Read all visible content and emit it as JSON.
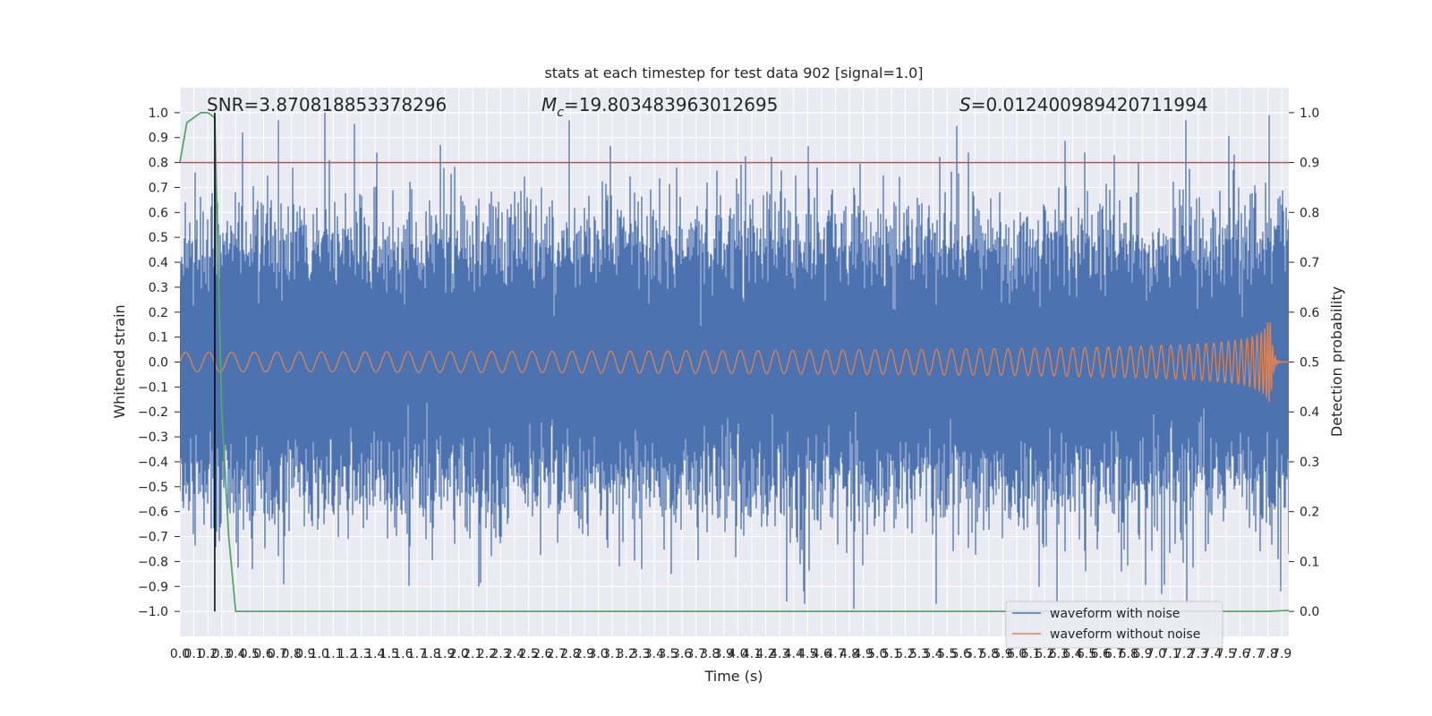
{
  "chart_data": {
    "type": "line",
    "title": "stats at each timestep for test data 902 [signal=1.0]",
    "xlabel": "Time (s)",
    "ylabel": "Whitened strain",
    "ylabel_right": "Detection probability",
    "xlim": [
      0.0,
      7.95
    ],
    "ylim": [
      -1.1,
      1.1
    ],
    "ylim_right": [
      -0.05,
      1.05
    ],
    "x_ticks": [
      0.0,
      0.1,
      0.2,
      0.3,
      0.4,
      0.5,
      0.6,
      0.7,
      0.8,
      0.9,
      1.0,
      1.1,
      1.2,
      1.3,
      1.4,
      1.5,
      1.6,
      1.7,
      1.8,
      1.9,
      2.0,
      2.1,
      2.2,
      2.3,
      2.4,
      2.5,
      2.6,
      2.7,
      2.8,
      2.9,
      3.0,
      3.1,
      3.2,
      3.3,
      3.4,
      3.5,
      3.6,
      3.7,
      3.8,
      3.9,
      4.0,
      4.1,
      4.2,
      4.3,
      4.4,
      4.5,
      4.6,
      4.7,
      4.8,
      4.9,
      5.0,
      5.1,
      5.2,
      5.3,
      5.4,
      5.5,
      5.6,
      5.7,
      5.8,
      5.9,
      6.0,
      6.1,
      6.2,
      6.3,
      6.4,
      6.5,
      6.6,
      6.7,
      6.8,
      6.9,
      7.0,
      7.1,
      7.2,
      7.3,
      7.4,
      7.5,
      7.6,
      7.7,
      7.8,
      7.9
    ],
    "y_ticks": [
      -1.0,
      -0.9,
      -0.8,
      -0.7,
      -0.6,
      -0.5,
      -0.4,
      -0.3,
      -0.2,
      -0.1,
      0.0,
      0.1,
      0.2,
      0.3,
      0.4,
      0.5,
      0.6,
      0.7,
      0.8,
      0.9,
      1.0
    ],
    "y_ticks_right": [
      0.0,
      0.1,
      0.2,
      0.3,
      0.4,
      0.5,
      0.6,
      0.7,
      0.8,
      0.9,
      1.0
    ],
    "grid": true,
    "legend_position": "lower right",
    "annotations": {
      "snr": "SNR=3.870818853378296",
      "mc_symbol": "M",
      "mc_sub": "c",
      "mc_value": "=19.803483963012695",
      "s_symbol": "S",
      "s_value": "=0.012400989420711994"
    },
    "series": [
      {
        "name": "waveform with noise",
        "color": "#4c72b0",
        "kind": "noise",
        "typical_amplitude": 0.3,
        "peaks": [
          {
            "x": 1.04,
            "y": 1.0
          },
          {
            "x": 7.81,
            "y": 0.99
          },
          {
            "x": 1.87,
            "y": 0.87
          },
          {
            "x": 5.65,
            "y": 0.84
          },
          {
            "x": 6.49,
            "y": 0.84
          },
          {
            "x": 1.41,
            "y": 0.84
          },
          {
            "x": 0.81,
            "y": 0.78
          },
          {
            "x": 3.56,
            "y": 0.78
          },
          {
            "x": 0.11,
            "y": 0.76
          },
          {
            "x": 4.35,
            "y": -0.96
          },
          {
            "x": 4.83,
            "y": -0.99
          },
          {
            "x": 7.04,
            "y": -0.93
          },
          {
            "x": 7.22,
            "y": -0.96
          },
          {
            "x": 7.89,
            "y": -0.92
          },
          {
            "x": 2.14,
            "y": -0.9
          },
          {
            "x": 4.47,
            "y": -0.92
          },
          {
            "x": 0.52,
            "y": -0.83
          },
          {
            "x": 3.31,
            "y": -0.83
          }
        ]
      },
      {
        "name": "waveform without noise",
        "color": "#dd8452",
        "kind": "chirp",
        "merger_time": 7.82,
        "peak_amplitude": 0.16
      }
    ],
    "probability_curve": {
      "color": "#55a868",
      "x": [
        0.0,
        0.05,
        0.1,
        0.15,
        0.2,
        0.25,
        0.3,
        0.35,
        0.4,
        7.7,
        7.8,
        7.95
      ],
      "y": [
        0.9,
        0.98,
        0.99,
        1.0,
        1.0,
        0.99,
        0.4,
        0.15,
        0.0,
        0.0,
        0.0,
        0.002
      ]
    },
    "threshold_line": {
      "y_right": 0.9,
      "color": "#c44e52"
    },
    "vertical_line": {
      "x": 0.25,
      "color": "#000000"
    }
  }
}
